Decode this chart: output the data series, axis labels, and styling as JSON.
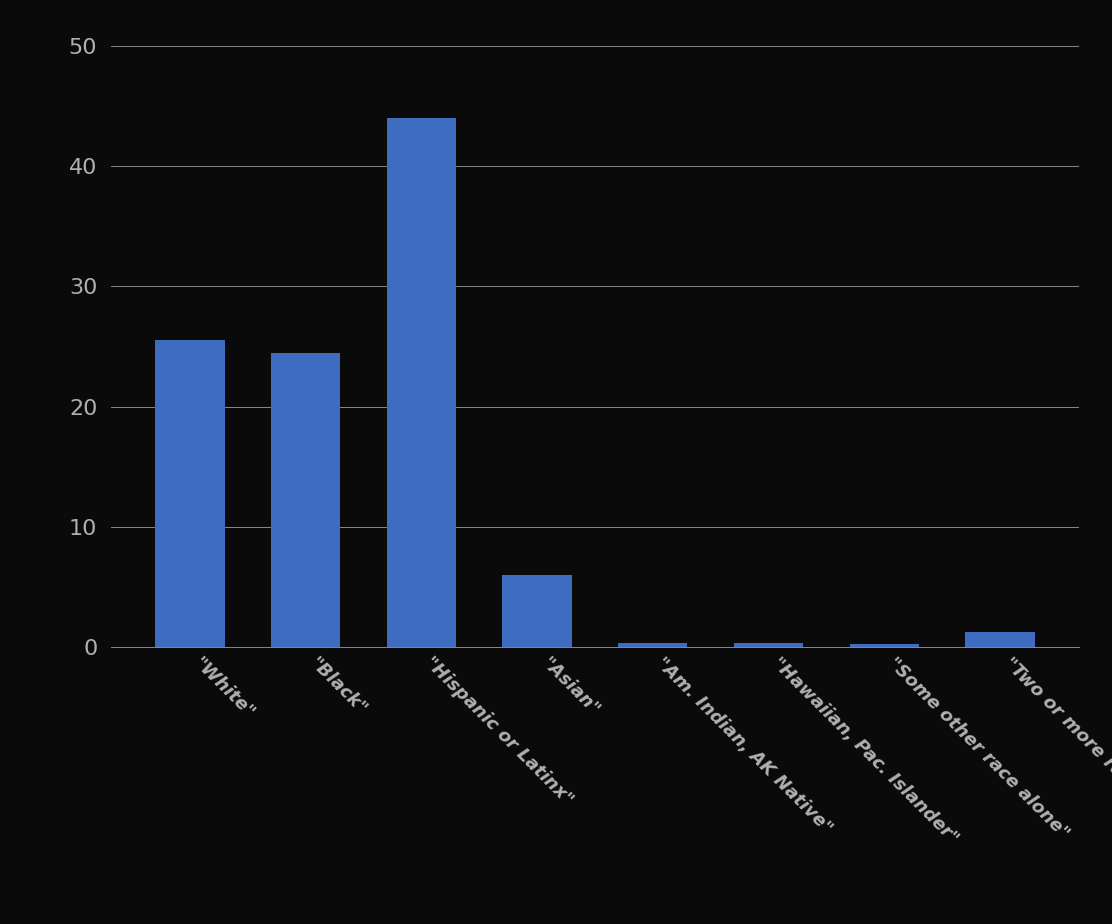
{
  "categories": [
    "\"White\"",
    "\"Black\"",
    "\"Hispanic or Latinx\"",
    "\"Asian\"",
    "\"Am. Indian, AK Native\"",
    "\"Hawaiian, Pac. Islander\"",
    "\"Some other race alone\"",
    "\"Two or more races\""
  ],
  "values": [
    25.5,
    24.5,
    44.0,
    6.0,
    0.3,
    0.35,
    0.25,
    1.2
  ],
  "bar_color": "#3D6CC0",
  "background_color": "#0a0a0a",
  "text_color": "#b0b0b0",
  "ylim": [
    0,
    50
  ],
  "yticks": [
    0,
    10,
    20,
    30,
    40,
    50
  ],
  "grid_color": "#888888",
  "bar_width": 0.6,
  "tick_label_fontsize": 13,
  "tick_label_rotation": -45,
  "ytick_fontsize": 16
}
